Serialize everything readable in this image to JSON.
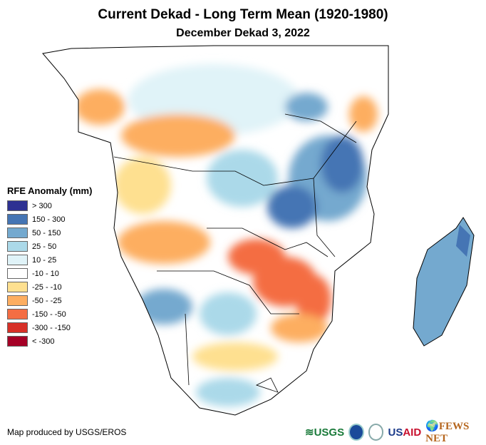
{
  "title": "Current Dekad - Long Term Mean (1920-1980)",
  "subtitle": "December Dekad 3, 2022",
  "legend": {
    "title": "RFE Anomaly (mm)",
    "items": [
      {
        "label": "> 300",
        "color": "#2e3192"
      },
      {
        "label": "150 - 300",
        "color": "#4575b4"
      },
      {
        "label": "50 - 150",
        "color": "#74a9cf"
      },
      {
        "label": "25 - 50",
        "color": "#abd9e9"
      },
      {
        "label": "10 - 25",
        "color": "#e0f3f8"
      },
      {
        "label": "-10 - 10",
        "color": "#ffffff"
      },
      {
        "label": "-25 - -10",
        "color": "#fee090"
      },
      {
        "label": "-50 - -25",
        "color": "#fdae61"
      },
      {
        "label": "-150 - -50",
        "color": "#f46d43"
      },
      {
        "label": "-300 - -150",
        "color": "#d73027"
      },
      {
        "label": "< -300",
        "color": "#a50026"
      }
    ]
  },
  "credit": "Map produced by USGS/EROS",
  "logos": [
    "USGS",
    "NOAA",
    "USAID",
    "FEWS NET"
  ]
}
